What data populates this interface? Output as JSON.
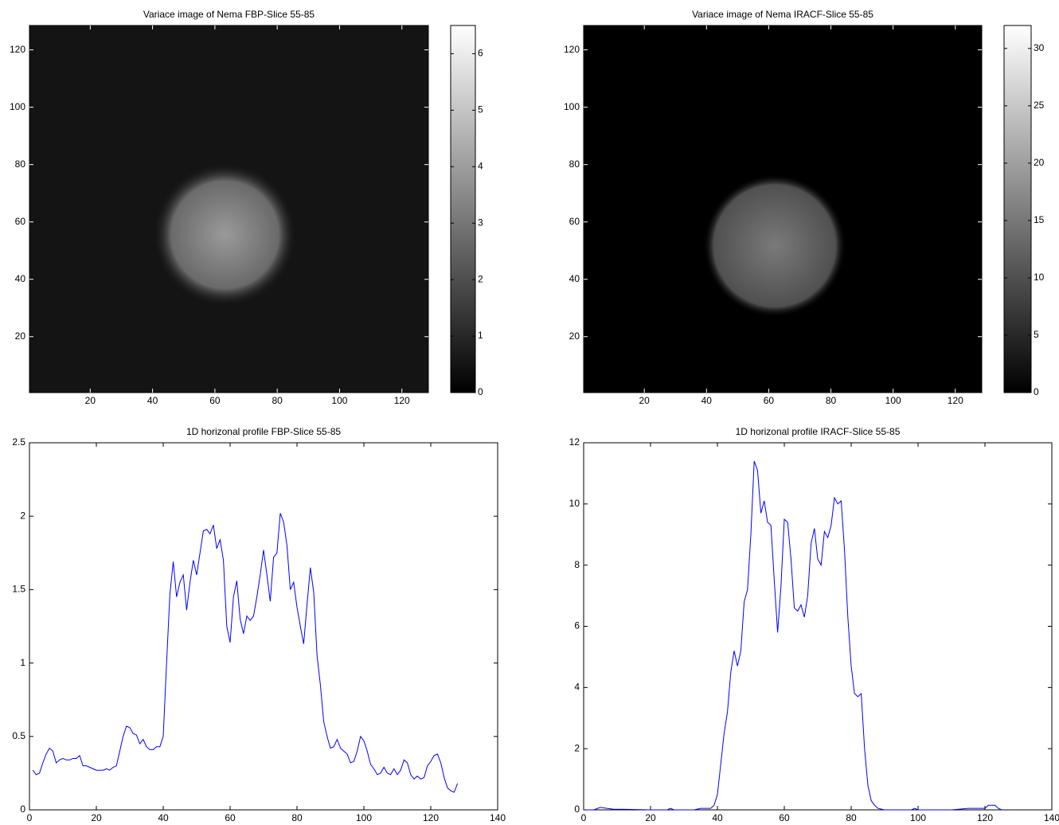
{
  "chart_data": [
    {
      "type": "image",
      "title": "Variace image of Nema FBP-Slice 55-85",
      "xlim": [
        0.5,
        128.5
      ],
      "ylim": [
        0.5,
        128.5
      ],
      "xticks": [
        20,
        40,
        60,
        80,
        100,
        120
      ],
      "yticks": [
        20,
        40,
        60,
        80,
        100,
        120
      ],
      "clim": [
        0,
        6.5
      ],
      "cticks": [
        0,
        1,
        2,
        3,
        4,
        5,
        6
      ]
    },
    {
      "type": "image",
      "title": "Variace image of Nema IRACF-Slice 55-85",
      "xlim": [
        0.5,
        128.5
      ],
      "ylim": [
        0.5,
        128.5
      ],
      "xticks": [
        20,
        40,
        60,
        80,
        100,
        120
      ],
      "yticks": [
        20,
        40,
        60,
        80,
        100,
        120
      ],
      "clim": [
        0,
        32
      ],
      "cticks": [
        0,
        5,
        10,
        15,
        20,
        25,
        30
      ]
    },
    {
      "type": "line",
      "title": "1D horizonal profile FBP-Slice 55-85",
      "xlim": [
        0,
        140
      ],
      "ylim": [
        0,
        2.5
      ],
      "xticks": [
        0,
        20,
        40,
        60,
        80,
        100,
        120,
        140
      ],
      "yticks": [
        0,
        0.5,
        1,
        1.5,
        2,
        2.5
      ],
      "color": "#0000ff",
      "x": [
        1,
        2,
        3,
        4,
        5,
        6,
        7,
        8,
        9,
        10,
        11,
        12,
        13,
        14,
        15,
        16,
        17,
        18,
        19,
        20,
        21,
        22,
        23,
        24,
        25,
        26,
        27,
        28,
        29,
        30,
        31,
        32,
        33,
        34,
        35,
        36,
        37,
        38,
        39,
        40,
        41,
        42,
        43,
        44,
        45,
        46,
        47,
        48,
        49,
        50,
        51,
        52,
        53,
        54,
        55,
        56,
        57,
        58,
        59,
        60,
        61,
        62,
        63,
        64,
        65,
        66,
        67,
        68,
        69,
        70,
        71,
        72,
        73,
        74,
        75,
        76,
        77,
        78,
        79,
        80,
        81,
        82,
        83,
        84,
        85,
        86,
        87,
        88,
        89,
        90,
        91,
        92,
        93,
        94,
        95,
        96,
        97,
        98,
        99,
        100,
        101,
        102,
        103,
        104,
        105,
        106,
        107,
        108,
        109,
        110,
        111,
        112,
        113,
        114,
        115,
        116,
        117,
        118,
        119,
        120,
        121,
        122,
        123,
        124,
        125,
        126,
        127,
        128
      ],
      "values": [
        0.27,
        0.24,
        0.25,
        0.32,
        0.38,
        0.42,
        0.4,
        0.32,
        0.34,
        0.35,
        0.34,
        0.34,
        0.35,
        0.35,
        0.37,
        0.3,
        0.3,
        0.29,
        0.28,
        0.27,
        0.27,
        0.27,
        0.28,
        0.27,
        0.29,
        0.3,
        0.4,
        0.5,
        0.57,
        0.56,
        0.52,
        0.51,
        0.45,
        0.48,
        0.43,
        0.41,
        0.41,
        0.43,
        0.43,
        0.5,
        1.0,
        1.47,
        1.69,
        1.45,
        1.55,
        1.6,
        1.36,
        1.55,
        1.7,
        1.6,
        1.75,
        1.9,
        1.91,
        1.88,
        1.94,
        1.78,
        1.84,
        1.7,
        1.25,
        1.14,
        1.45,
        1.56,
        1.3,
        1.2,
        1.32,
        1.29,
        1.32,
        1.45,
        1.6,
        1.77,
        1.6,
        1.42,
        1.72,
        1.75,
        2.02,
        1.96,
        1.8,
        1.5,
        1.55,
        1.38,
        1.25,
        1.13,
        1.4,
        1.65,
        1.48,
        1.05,
        0.85,
        0.6,
        0.5,
        0.42,
        0.43,
        0.48,
        0.42,
        0.4,
        0.38,
        0.32,
        0.33,
        0.4,
        0.5,
        0.47,
        0.4,
        0.31,
        0.28,
        0.24,
        0.25,
        0.29,
        0.25,
        0.24,
        0.28,
        0.24,
        0.27,
        0.34,
        0.32,
        0.24,
        0.21,
        0.23,
        0.21,
        0.22,
        0.3,
        0.33,
        0.37,
        0.38,
        0.32,
        0.22,
        0.15,
        0.13,
        0.12,
        0.18
      ]
    },
    {
      "type": "line",
      "title": "1D horizonal profile IRACF-Slice 55-85",
      "xlim": [
        0,
        140
      ],
      "ylim": [
        0,
        12
      ],
      "xticks": [
        0,
        20,
        40,
        60,
        80,
        100,
        120,
        140
      ],
      "yticks": [
        0,
        2,
        4,
        6,
        8,
        10,
        12
      ],
      "color": "#0000ff",
      "x": [
        1,
        3,
        5,
        7,
        9,
        12,
        20,
        25,
        26,
        27,
        30,
        33,
        35,
        38,
        39,
        40,
        41,
        42,
        43,
        44,
        45,
        46,
        47,
        48,
        49,
        50,
        51,
        52,
        53,
        54,
        55,
        56,
        57,
        58,
        59,
        60,
        61,
        62,
        63,
        64,
        65,
        66,
        67,
        68,
        69,
        70,
        71,
        72,
        73,
        74,
        75,
        76,
        77,
        78,
        79,
        80,
        81,
        82,
        83,
        84,
        85,
        86,
        87,
        88,
        90,
        95,
        98,
        99,
        100,
        110,
        115,
        120,
        121,
        123,
        124,
        125
      ],
      "values": [
        0,
        0,
        0.08,
        0.05,
        0.02,
        0.02,
        0,
        0,
        0.05,
        0,
        0,
        0,
        0.05,
        0.05,
        0.15,
        0.5,
        1.5,
        2.5,
        3.2,
        4.5,
        5.2,
        4.7,
        5.2,
        6.8,
        7.2,
        9.0,
        11.4,
        11.1,
        9.7,
        10.1,
        9.4,
        9.3,
        7.5,
        5.8,
        7.3,
        9.5,
        9.4,
        8.2,
        6.6,
        6.5,
        6.7,
        6.3,
        7.0,
        8.7,
        9.2,
        8.2,
        8.0,
        9.1,
        8.9,
        9.3,
        10.2,
        10.0,
        10.1,
        8.5,
        6.3,
        4.7,
        3.8,
        3.7,
        3.8,
        2.0,
        0.8,
        0.3,
        0.15,
        0.05,
        0,
        0,
        0,
        0.05,
        0,
        0,
        0.05,
        0.05,
        0.15,
        0.15,
        0.05,
        0
      ]
    }
  ]
}
